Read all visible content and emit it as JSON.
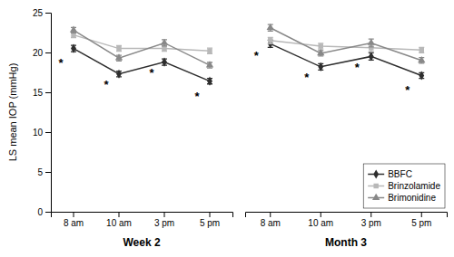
{
  "chart_data": [
    {
      "type": "line",
      "xlabel": "Week 2",
      "ylabel": "LS mean IOP (mmHg)",
      "categories": [
        "8 am",
        "10 am",
        "3 pm",
        "5 pm"
      ],
      "series": [
        {
          "name": "BBFC",
          "color": "#2e2e2e",
          "marker": "diamond",
          "values": [
            20.5,
            17.3,
            18.8,
            16.4
          ],
          "errors": [
            0.4,
            0.35,
            0.4,
            0.35
          ]
        },
        {
          "name": "Brinzolamide",
          "color": "#b8b8b8",
          "marker": "square",
          "values": [
            22.2,
            20.5,
            20.5,
            20.2
          ],
          "errors": [
            0.35,
            0.35,
            0.35,
            0.35
          ]
        },
        {
          "name": "Brimonidine",
          "color": "#888888",
          "marker": "triangle",
          "values": [
            22.8,
            19.3,
            21.2,
            18.4
          ],
          "errors": [
            0.35,
            0.35,
            0.4,
            0.35
          ]
        }
      ],
      "annotations": [
        {
          "text": "*",
          "category": "8 am",
          "y": 19.0
        },
        {
          "text": "*",
          "category": "10 am",
          "y": 16.3
        },
        {
          "text": "*",
          "category": "3 pm",
          "y": 17.8
        },
        {
          "text": "*",
          "category": "5 pm",
          "y": 14.8
        }
      ],
      "ylim": [
        0,
        25
      ],
      "yticks": [
        0,
        5,
        10,
        15,
        20,
        25
      ]
    },
    {
      "type": "line",
      "xlabel": "Month 3",
      "categories": [
        "8 am",
        "10 am",
        "3 pm",
        "5 pm"
      ],
      "series": [
        {
          "name": "BBFC",
          "color": "#2e2e2e",
          "marker": "diamond",
          "values": [
            21.1,
            18.2,
            19.5,
            17.1
          ],
          "errors": [
            0.45,
            0.4,
            0.45,
            0.35
          ]
        },
        {
          "name": "Brinzolamide",
          "color": "#b8b8b8",
          "marker": "square",
          "values": [
            21.5,
            20.8,
            20.6,
            20.3
          ],
          "errors": [
            0.4,
            0.35,
            0.45,
            0.35
          ]
        },
        {
          "name": "Brimonidine",
          "color": "#888888",
          "marker": "triangle",
          "values": [
            23.1,
            19.9,
            21.2,
            19.0
          ],
          "errors": [
            0.4,
            0.35,
            0.5,
            0.35
          ]
        }
      ],
      "annotations": [
        {
          "text": "*",
          "category": "8 am",
          "y": 19.9
        },
        {
          "text": "*",
          "category": "10 am",
          "y": 17.2
        },
        {
          "text": "*",
          "category": "3 pm",
          "y": 18.4
        },
        {
          "text": "*",
          "category": "5 pm",
          "y": 15.6
        }
      ],
      "ylim": [
        0,
        25
      ],
      "tick_labels": "x",
      "legend": "lower right"
    }
  ]
}
